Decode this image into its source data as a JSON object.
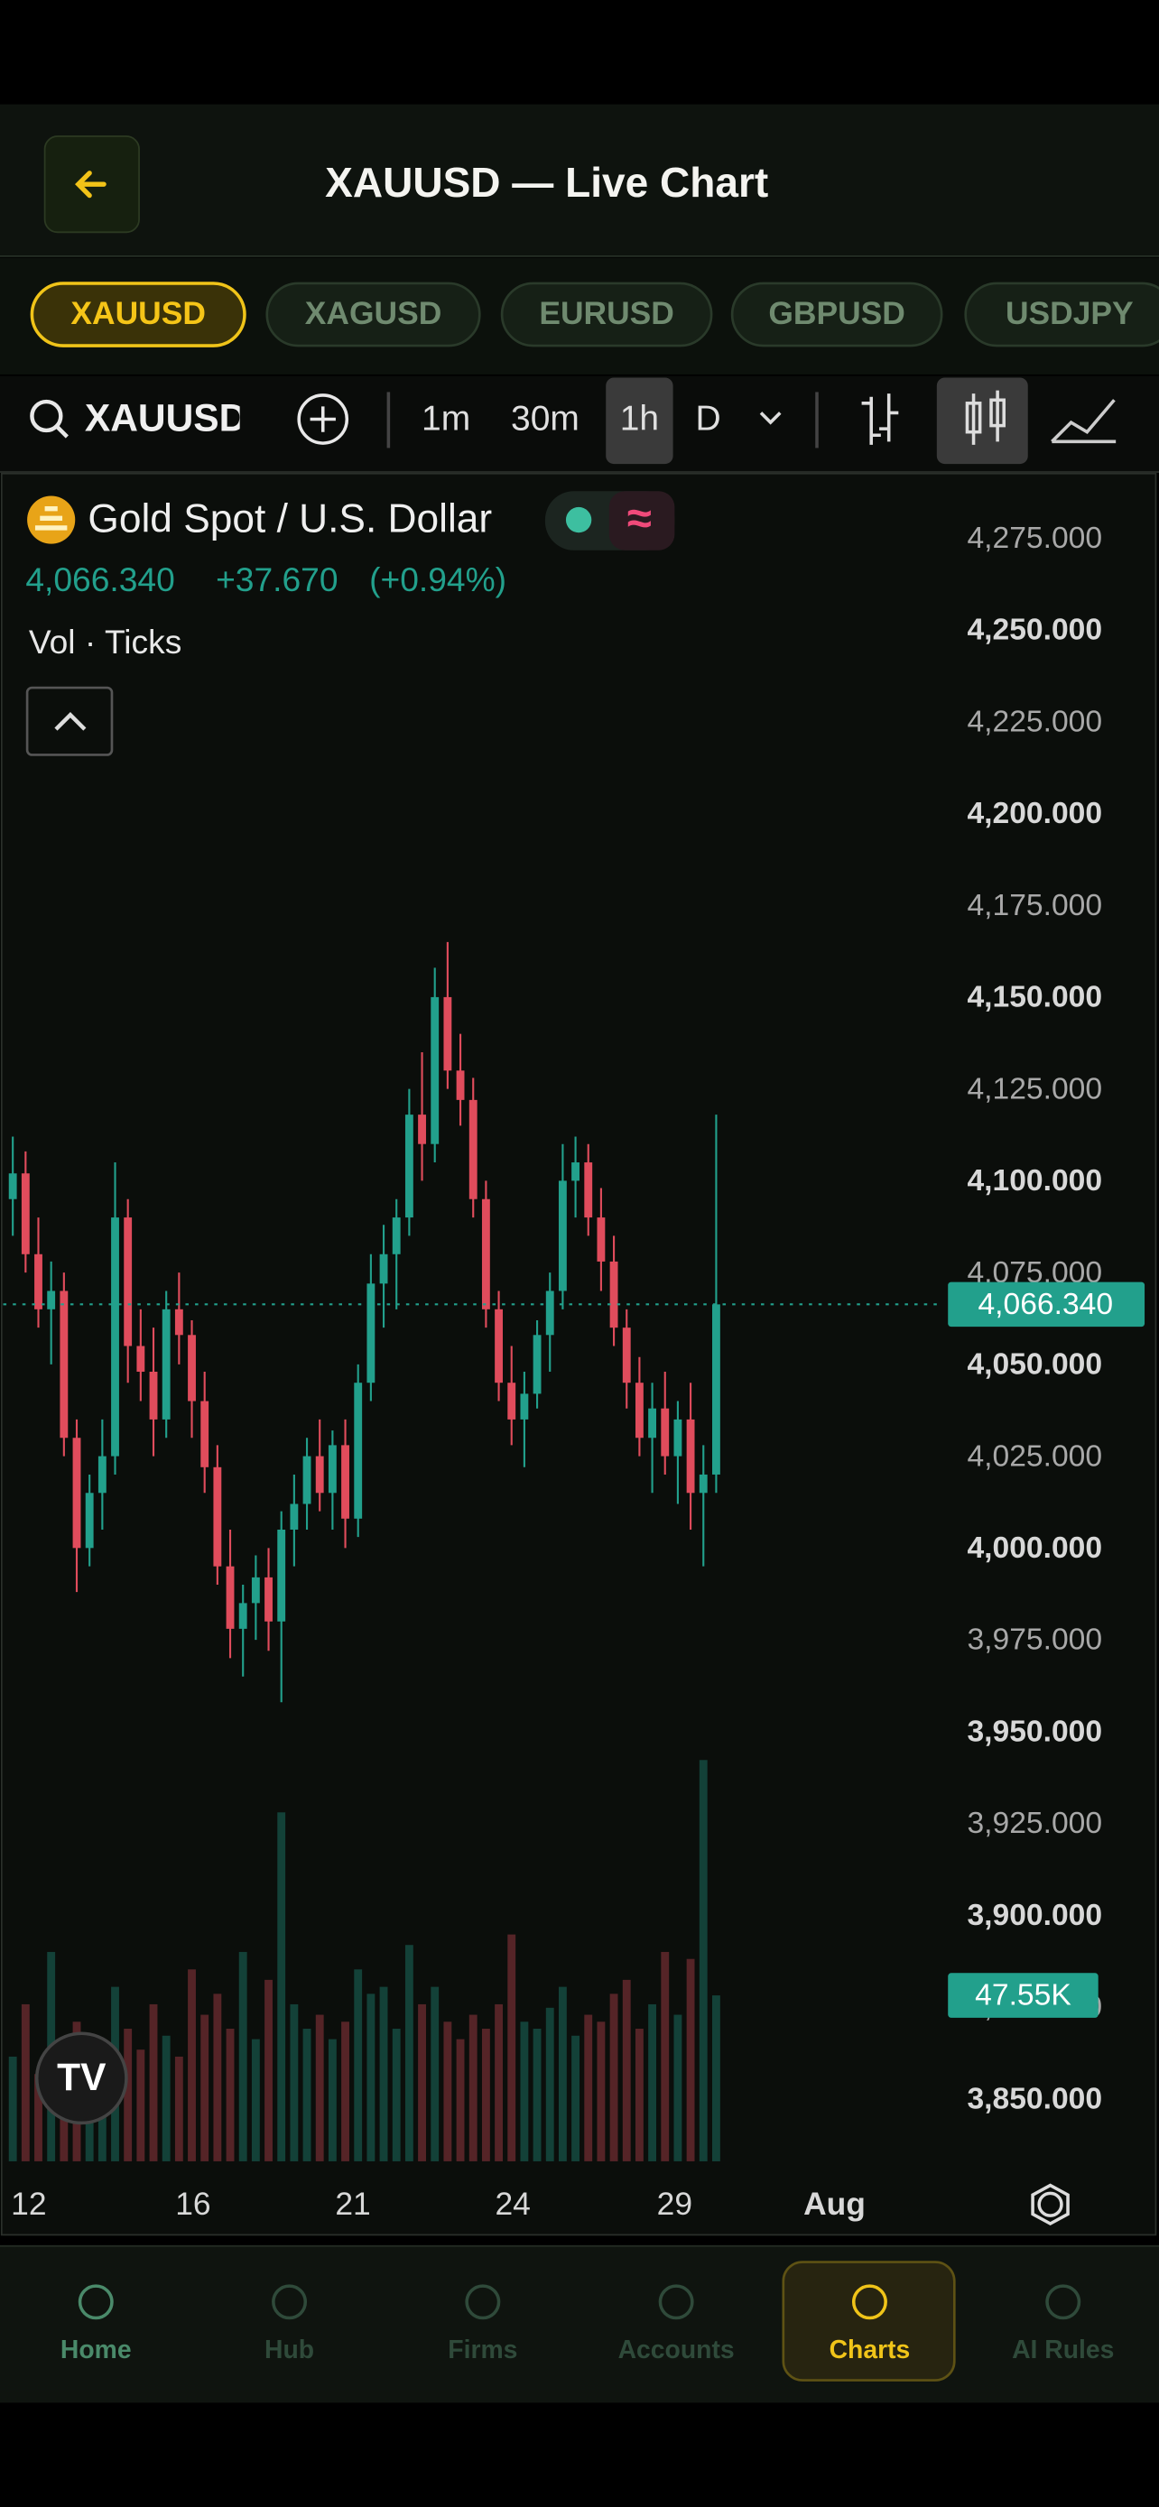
{
  "header": {
    "title": "XAUUSD — Live Chart"
  },
  "tabs": [
    "XAUUSD",
    "XAGUSD",
    "EURUSD",
    "GBPUSD",
    "USDJPY"
  ],
  "toolbar": {
    "search": "XAUUSD",
    "intervals": [
      "1m",
      "30m",
      "1h",
      "D"
    ]
  },
  "legend": {
    "name": "Gold Spot / U.S. Dollar",
    "change": "+37.670",
    "change_pct": "(+0.94%)",
    "studies": "Vol · Ticks"
  },
  "chart_data": {
    "type": "candlestick",
    "up_color": "#22a08c",
    "down_color": "#e04c5c",
    "ohlc": [
      [
        4095,
        4112,
        4085,
        4102
      ],
      [
        4102,
        4108,
        4075,
        4080
      ],
      [
        4080,
        4090,
        4060,
        4065
      ],
      [
        4065,
        4078,
        4050,
        4070
      ],
      [
        4070,
        4075,
        4025,
        4030
      ],
      [
        4030,
        4035,
        3988,
        4000
      ],
      [
        4000,
        4020,
        3995,
        4015
      ],
      [
        4015,
        4035,
        4005,
        4025
      ],
      [
        4025,
        4105,
        4020,
        4090
      ],
      [
        4090,
        4095,
        4045,
        4055
      ],
      [
        4055,
        4065,
        4040,
        4048
      ],
      [
        4048,
        4060,
        4025,
        4035
      ],
      [
        4035,
        4070,
        4030,
        4065
      ],
      [
        4065,
        4075,
        4050,
        4058
      ],
      [
        4058,
        4062,
        4030,
        4040
      ],
      [
        4040,
        4048,
        4015,
        4022
      ],
      [
        4022,
        4028,
        3990,
        3995
      ],
      [
        3995,
        4005,
        3970,
        3978
      ],
      [
        3978,
        3990,
        3965,
        3985
      ],
      [
        3985,
        3998,
        3975,
        3992
      ],
      [
        3992,
        4000,
        3972,
        3980
      ],
      [
        3980,
        4010,
        3958,
        4005
      ],
      [
        4005,
        4020,
        3995,
        4012
      ],
      [
        4012,
        4030,
        4005,
        4025
      ],
      [
        4025,
        4035,
        4010,
        4015
      ],
      [
        4015,
        4032,
        4005,
        4028
      ],
      [
        4028,
        4035,
        4000,
        4008
      ],
      [
        4008,
        4050,
        4003,
        4045
      ],
      [
        4045,
        4080,
        4040,
        4072
      ],
      [
        4072,
        4088,
        4060,
        4080
      ],
      [
        4080,
        4095,
        4065,
        4090
      ],
      [
        4090,
        4125,
        4085,
        4118
      ],
      [
        4118,
        4135,
        4100,
        4110
      ],
      [
        4110,
        4158,
        4105,
        4150
      ],
      [
        4150,
        4165,
        4125,
        4130
      ],
      [
        4130,
        4140,
        4115,
        4122
      ],
      [
        4122,
        4128,
        4090,
        4095
      ],
      [
        4095,
        4100,
        4060,
        4065
      ],
      [
        4065,
        4070,
        4040,
        4045
      ],
      [
        4045,
        4055,
        4028,
        4035
      ],
      [
        4035,
        4048,
        4022,
        4042
      ],
      [
        4042,
        4062,
        4038,
        4058
      ],
      [
        4058,
        4075,
        4048,
        4070
      ],
      [
        4070,
        4110,
        4065,
        4100
      ],
      [
        4100,
        4112,
        4090,
        4105
      ],
      [
        4105,
        4110,
        4085,
        4090
      ],
      [
        4090,
        4098,
        4070,
        4078
      ],
      [
        4078,
        4085,
        4055,
        4060
      ],
      [
        4060,
        4065,
        4038,
        4045
      ],
      [
        4045,
        4052,
        4025,
        4030
      ],
      [
        4030,
        4045,
        4015,
        4038
      ],
      [
        4038,
        4048,
        4020,
        4025
      ],
      [
        4025,
        4040,
        4012,
        4035
      ],
      [
        4035,
        4045,
        4005,
        4015
      ],
      [
        4015,
        4028,
        3995,
        4020
      ],
      [
        4020,
        4118,
        4015,
        4066.34
      ]
    ],
    "volume": [
      30000,
      45000,
      25000,
      60000,
      35000,
      40000,
      30000,
      28000,
      50000,
      38000,
      32000,
      45000,
      36000,
      30000,
      55000,
      42000,
      48000,
      38000,
      60000,
      35000,
      52000,
      100000,
      45000,
      38000,
      42000,
      35000,
      40000,
      55000,
      48000,
      50000,
      38000,
      62000,
      45000,
      50000,
      40000,
      35000,
      42000,
      38000,
      45000,
      65000,
      40000,
      38000,
      44000,
      50000,
      36000,
      42000,
      40000,
      48000,
      52000,
      38000,
      45000,
      60000,
      42000,
      58000,
      115000,
      47550
    ],
    "volume_lim": [
      0,
      120000
    ],
    "volume_label": "47.55K",
    "last_price": 4066.34,
    "last_price_label": "4,066.340",
    "xlim": [
      0,
      73
    ],
    "xticks": [
      {
        "value": 1.75,
        "label": "12"
      },
      {
        "value": 14.6,
        "label": "16"
      },
      {
        "value": 27.1,
        "label": "21"
      },
      {
        "value": 39.6,
        "label": "24"
      },
      {
        "value": 52.25,
        "label": "29"
      },
      {
        "value": 64.75,
        "label": "Aug"
      }
    ],
    "ylim": [
      3833,
      4293
    ],
    "yticks": [
      {
        "value": 4275,
        "label": "4,275.000"
      },
      {
        "value": 4250,
        "label": "4,250.000"
      },
      {
        "value": 4225,
        "label": "4,225.000"
      },
      {
        "value": 4200,
        "label": "4,200.000"
      },
      {
        "value": 4175,
        "label": "4,175.000"
      },
      {
        "value": 4150,
        "label": "4,150.000"
      },
      {
        "value": 4125,
        "label": "4,125.000"
      },
      {
        "value": 4100,
        "label": "4,100.000"
      },
      {
        "value": 4075,
        "label": "4,075.000"
      },
      {
        "value": 4050,
        "label": "4,050.000"
      },
      {
        "value": 4025,
        "label": "4,025.000"
      },
      {
        "value": 4000,
        "label": "4,000.000"
      },
      {
        "value": 3975,
        "label": "3,975.000"
      },
      {
        "value": 3950,
        "label": "3,950.000"
      },
      {
        "value": 3925,
        "label": "3,925.000"
      },
      {
        "value": 3900,
        "label": "3,900.000"
      },
      {
        "value": 3875,
        "label": "3,875.000"
      },
      {
        "value": 3850,
        "label": "3,850.000"
      }
    ]
  },
  "nav": [
    "Home",
    "Hub",
    "Firms",
    "Accounts",
    "Charts",
    "AI Rules"
  ]
}
